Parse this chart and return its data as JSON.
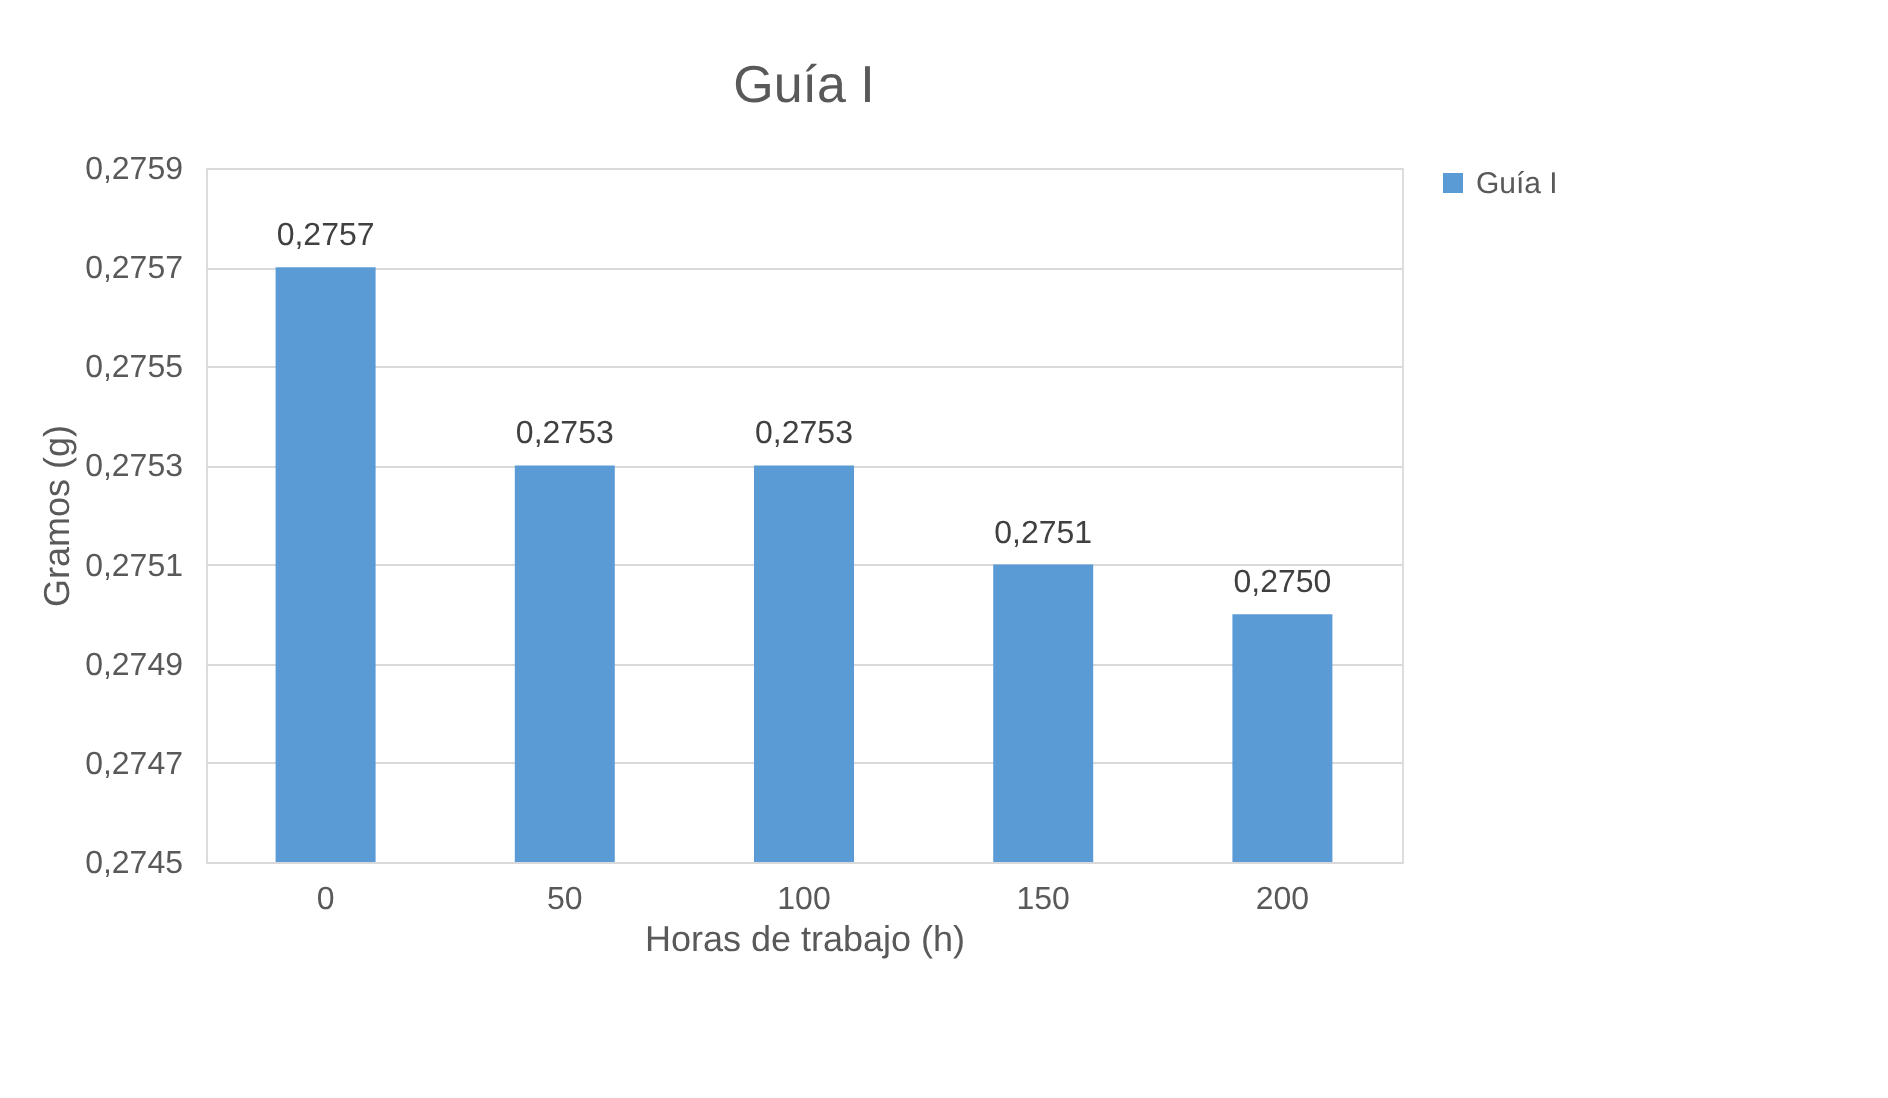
{
  "chart_data": {
    "type": "bar",
    "title": "Guía I",
    "xlabel": "Horas de trabajo (h)",
    "ylabel": "Gramos (g)",
    "categories": [
      "0",
      "50",
      "100",
      "150",
      "200"
    ],
    "series": [
      {
        "name": "Guía I",
        "color": "#5b9bd5",
        "values": [
          0.2757,
          0.2753,
          0.2753,
          0.2751,
          0.275
        ],
        "value_labels": [
          "0,2757",
          "0,2753",
          "0,2753",
          "0,2751",
          "0,2750"
        ]
      }
    ],
    "ylim": [
      0.2745,
      0.2759
    ],
    "yticks": [
      {
        "value": 0.2745,
        "label": "0,2745"
      },
      {
        "value": 0.2747,
        "label": "0,2747"
      },
      {
        "value": 0.2749,
        "label": "0,2749"
      },
      {
        "value": 0.2751,
        "label": "0,2751"
      },
      {
        "value": 0.2753,
        "label": "0,2753"
      },
      {
        "value": 0.2755,
        "label": "0,2755"
      },
      {
        "value": 0.2757,
        "label": "0,2757"
      },
      {
        "value": 0.2759,
        "label": "0,2759"
      }
    ],
    "grid": "y",
    "legend": "right"
  }
}
